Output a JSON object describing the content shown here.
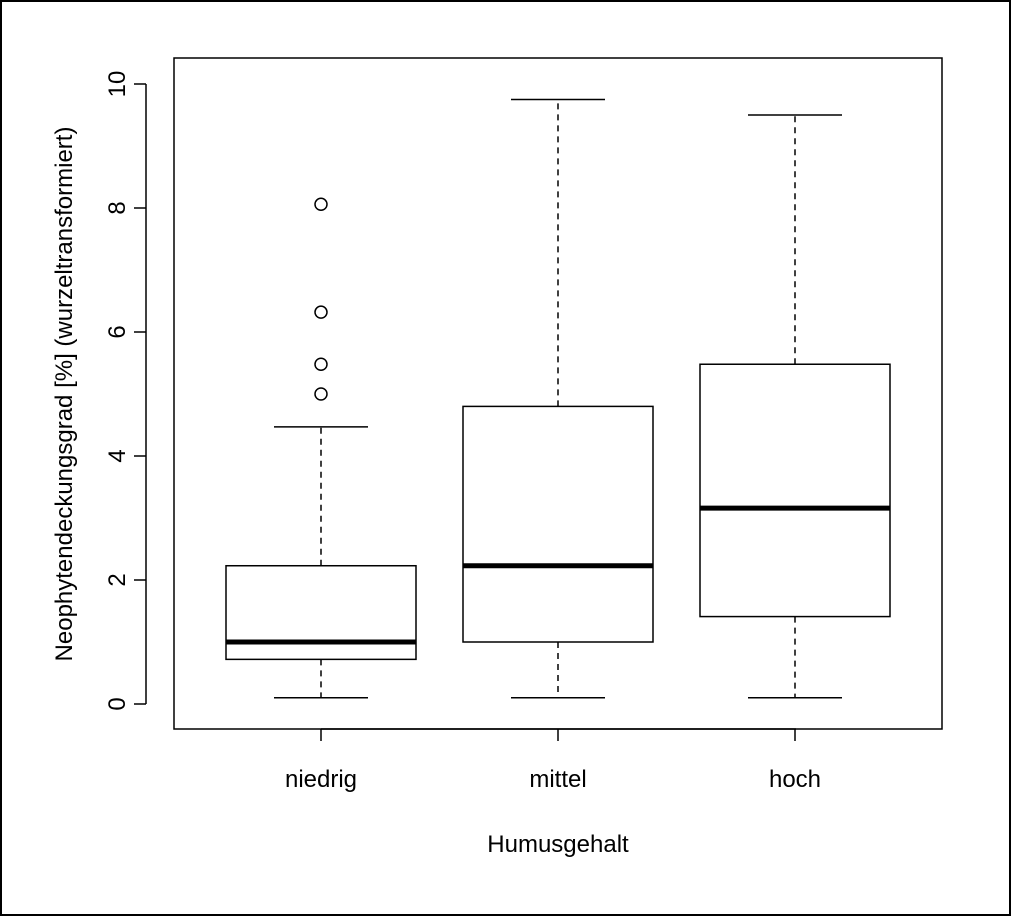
{
  "chart_data": {
    "type": "boxplot",
    "title": "",
    "xlabel": "Humusgehalt",
    "ylabel": "Neophytendeckungsgrad [%] (wurzeltransformiert)",
    "ylim": [
      0,
      10
    ],
    "yticks": [
      "0",
      "2",
      "4",
      "6",
      "8",
      "10"
    ],
    "grid": false,
    "categories": [
      "niedrig",
      "mittel",
      "hoch"
    ],
    "boxes": [
      {
        "category": "niedrig",
        "whisker_low": 0.1,
        "q1": 0.72,
        "median": 1.0,
        "q3": 2.23,
        "whisker_high": 4.47,
        "outliers": [
          5.0,
          5.48,
          6.32,
          8.06
        ]
      },
      {
        "category": "mittel",
        "whisker_low": 0.1,
        "q1": 1.0,
        "median": 2.23,
        "q3": 4.8,
        "whisker_high": 9.75,
        "outliers": []
      },
      {
        "category": "hoch",
        "whisker_low": 0.1,
        "q1": 1.41,
        "median": 3.16,
        "q3": 5.48,
        "whisker_high": 9.5,
        "outliers": []
      }
    ]
  }
}
